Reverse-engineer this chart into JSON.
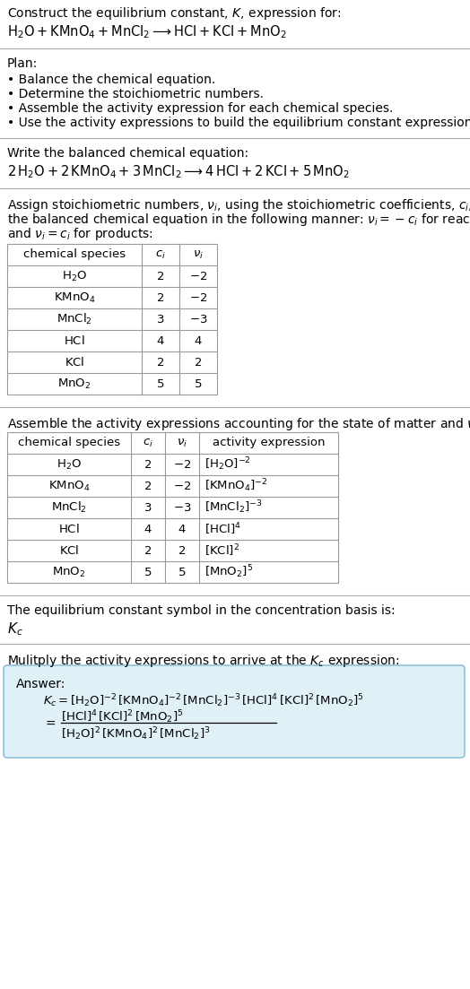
{
  "title_line1": "Construct the equilibrium constant, $K$, expression for:",
  "title_line2": "$\\mathrm{H_2O + KMnO_4 + MnCl_2 \\longrightarrow HCl + KCl + MnO_2}$",
  "plan_header": "Plan:",
  "plan_bullets": [
    "• Balance the chemical equation.",
    "• Determine the stoichiometric numbers.",
    "• Assemble the activity expression for each chemical species.",
    "• Use the activity expressions to build the equilibrium constant expression."
  ],
  "balanced_header": "Write the balanced chemical equation:",
  "balanced_eq": "$\\mathrm{2\\,H_2O + 2\\,KMnO_4 + 3\\,MnCl_2 \\longrightarrow 4\\,HCl + 2\\,KCl + 5\\,MnO_2}$",
  "stoich_intro_parts": [
    "Assign stoichiometric numbers, $\\nu_i$, using the stoichiometric coefficients, $c_i$, from",
    "the balanced chemical equation in the following manner: $\\nu_i = -c_i$ for reactants",
    "and $\\nu_i = c_i$ for products:"
  ],
  "table1_headers": [
    "chemical species",
    "$c_i$",
    "$\\nu_i$"
  ],
  "table1_data": [
    [
      "$\\mathrm{H_2O}$",
      "2",
      "$-2$"
    ],
    [
      "$\\mathrm{KMnO_4}$",
      "2",
      "$-2$"
    ],
    [
      "$\\mathrm{MnCl_2}$",
      "3",
      "$-3$"
    ],
    [
      "$\\mathrm{HCl}$",
      "4",
      "4"
    ],
    [
      "$\\mathrm{KCl}$",
      "2",
      "2"
    ],
    [
      "$\\mathrm{MnO_2}$",
      "5",
      "5"
    ]
  ],
  "activity_intro": "Assemble the activity expressions accounting for the state of matter and $\\nu_i$:",
  "table2_headers": [
    "chemical species",
    "$c_i$",
    "$\\nu_i$",
    "activity expression"
  ],
  "table2_data": [
    [
      "$\\mathrm{H_2O}$",
      "2",
      "$-2$",
      "$[\\mathrm{H_2O}]^{-2}$"
    ],
    [
      "$\\mathrm{KMnO_4}$",
      "2",
      "$-2$",
      "$[\\mathrm{KMnO_4}]^{-2}$"
    ],
    [
      "$\\mathrm{MnCl_2}$",
      "3",
      "$-3$",
      "$[\\mathrm{MnCl_2}]^{-3}$"
    ],
    [
      "$\\mathrm{HCl}$",
      "4",
      "4",
      "$[\\mathrm{HCl}]^{4}$"
    ],
    [
      "$\\mathrm{KCl}$",
      "2",
      "2",
      "$[\\mathrm{KCl}]^{2}$"
    ],
    [
      "$\\mathrm{MnO_2}$",
      "5",
      "5",
      "$[\\mathrm{MnO_2}]^{5}$"
    ]
  ],
  "kc_intro": "The equilibrium constant symbol in the concentration basis is:",
  "kc_symbol": "$K_c$",
  "multiply_intro": "Mulitply the activity expressions to arrive at the $K_c$ expression:",
  "answer_label": "Answer:",
  "answer_line1": "$K_c = [\\mathrm{H_2O}]^{-2}\\,[\\mathrm{KMnO_4}]^{-2}\\,[\\mathrm{MnCl_2}]^{-3}\\,[\\mathrm{HCl}]^{4}\\,[\\mathrm{KCl}]^{2}\\,[\\mathrm{MnO_2}]^{5}$",
  "answer_line2_num": "$[\\mathrm{HCl}]^{4}\\,[\\mathrm{KCl}]^{2}\\,[\\mathrm{MnO_2}]^{5}$",
  "answer_line2_den": "$[\\mathrm{H_2O}]^{2}\\,[\\mathrm{KMnO_4}]^{2}\\,[\\mathrm{MnCl_2}]^{3}$",
  "bg_color": "#ffffff",
  "answer_box_color": "#dff0f7",
  "answer_box_border": "#90c0d8",
  "table_border_color": "#999999",
  "text_color": "#000000",
  "line_color": "#aaaaaa",
  "font_size": 10.0
}
